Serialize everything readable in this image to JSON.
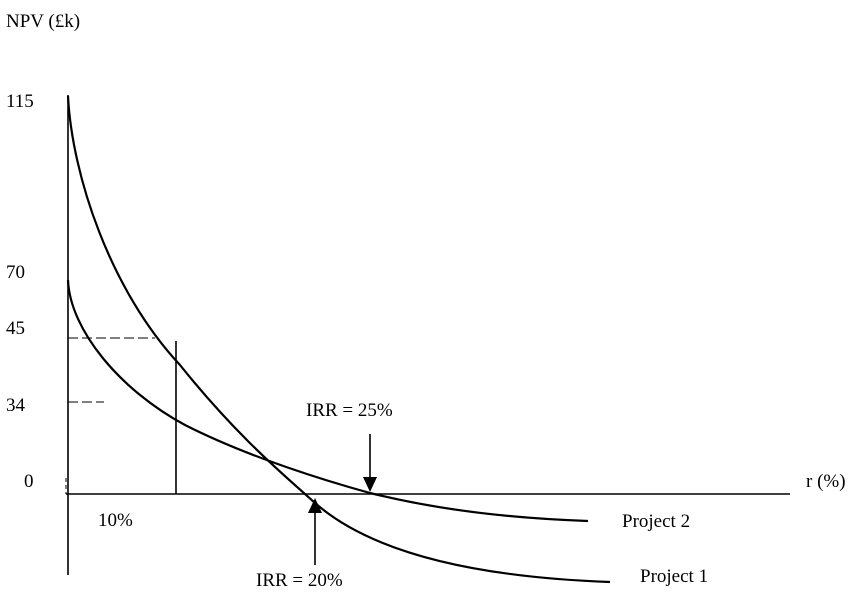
{
  "chart_data": {
    "type": "line",
    "ylabel": "NPV (£k)",
    "xlabel": "r (%)",
    "y_ticks": [
      "115",
      "70",
      "45",
      "34",
      "0"
    ],
    "x_tick_label": "10%",
    "series": [
      {
        "name": "Project 1",
        "x": [
          0,
          2,
          5,
          10,
          15,
          20,
          25,
          30,
          35,
          40
        ],
        "y": [
          115,
          88,
          65,
          40,
          18,
          0,
          -14,
          -22,
          -26,
          -28
        ]
      },
      {
        "name": "Project 2",
        "x": [
          0,
          2,
          5,
          10,
          15,
          20,
          25,
          30,
          35,
          40
        ],
        "y": [
          70,
          58,
          46,
          30,
          17,
          7,
          0,
          -5,
          -8,
          -9
        ]
      }
    ],
    "annotations": [
      {
        "text": "IRR = 25%",
        "x": 25,
        "y": 0
      },
      {
        "text": "IRR = 20%",
        "x": 20,
        "y": 0
      }
    ],
    "grid": false,
    "legend": "inline-right"
  }
}
